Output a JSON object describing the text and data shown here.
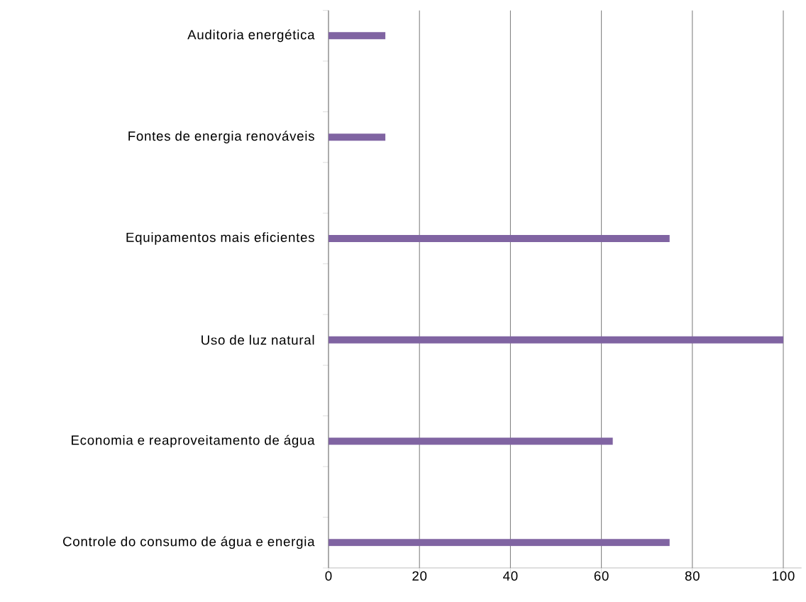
{
  "chart_data": {
    "type": "bar",
    "orientation": "horizontal",
    "categories": [
      "Auditoria energética",
      null,
      "Fontes de energia renováveis",
      null,
      "Equipamentos mais eficientes",
      null,
      "Uso de luz natural",
      null,
      "Economia e reaproveitamento de água",
      null,
      "Controle do consumo de água e energia"
    ],
    "values": [
      12.5,
      null,
      12.5,
      null,
      75,
      null,
      100,
      null,
      62.5,
      null,
      75
    ],
    "color": "#8064a2",
    "xlim": [
      0,
      104
    ],
    "xticks": [
      0,
      20,
      40,
      60,
      80,
      100
    ],
    "grid": "x"
  }
}
